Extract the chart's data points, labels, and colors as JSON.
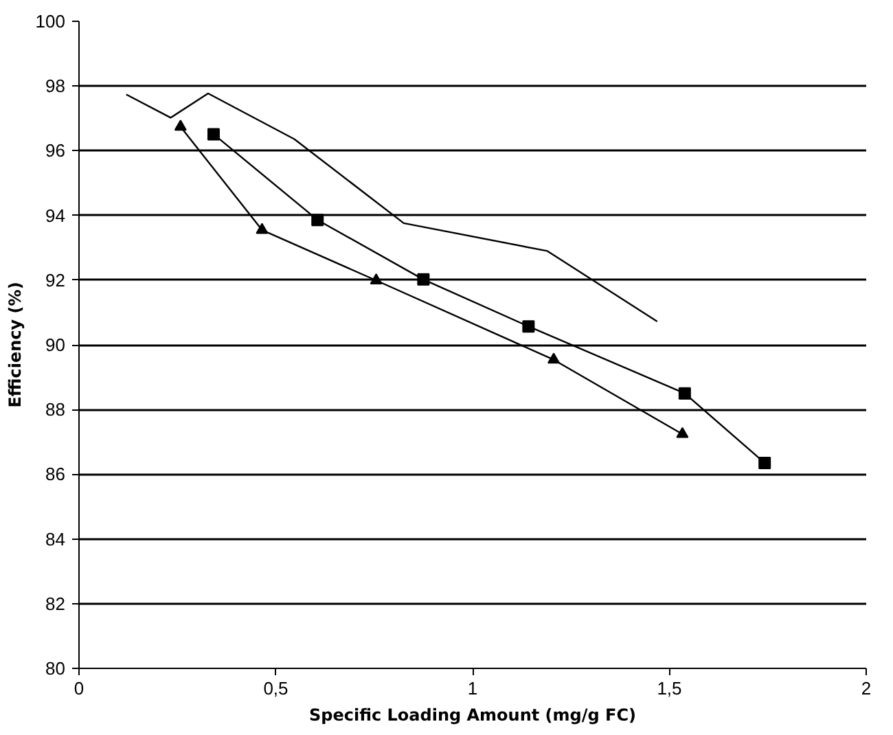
{
  "chart_data": {
    "type": "line",
    "xlabel": "Specific Loading Amount (mg/g FC)",
    "ylabel": "Efficiency (%)",
    "xlim": [
      0,
      2
    ],
    "xticks": [
      0,
      {
        "value": 0.5,
        "label": "0,5"
      },
      1,
      {
        "value": 1.5,
        "label": "1,5"
      },
      2
    ],
    "ylim": [
      80,
      100
    ],
    "yticks": [
      80,
      82,
      84,
      86,
      88,
      90,
      92,
      94,
      96,
      98,
      100
    ],
    "grid": "y",
    "line_style": "solid",
    "series": [
      {
        "color": "#000000",
        "marker": "none",
        "x": [
          0.12,
          0.233,
          0.328,
          0.547,
          0.825,
          1.19,
          1.469
        ],
        "values": [
          97.74,
          97.02,
          97.77,
          96.36,
          93.76,
          92.9,
          90.72
        ]
      },
      {
        "color": "#000000",
        "marker": "square",
        "x": [
          0.342,
          0.606,
          0.875,
          1.142,
          1.539,
          1.742
        ],
        "values": [
          96.51,
          93.86,
          92.02,
          90.57,
          88.5,
          86.35
        ]
      },
      {
        "color": "#000000",
        "marker": "triangle",
        "x": [
          0.258,
          0.465,
          0.755,
          1.206,
          1.533
        ],
        "values": [
          96.74,
          93.55,
          91.99,
          89.54,
          87.24
        ]
      }
    ]
  }
}
